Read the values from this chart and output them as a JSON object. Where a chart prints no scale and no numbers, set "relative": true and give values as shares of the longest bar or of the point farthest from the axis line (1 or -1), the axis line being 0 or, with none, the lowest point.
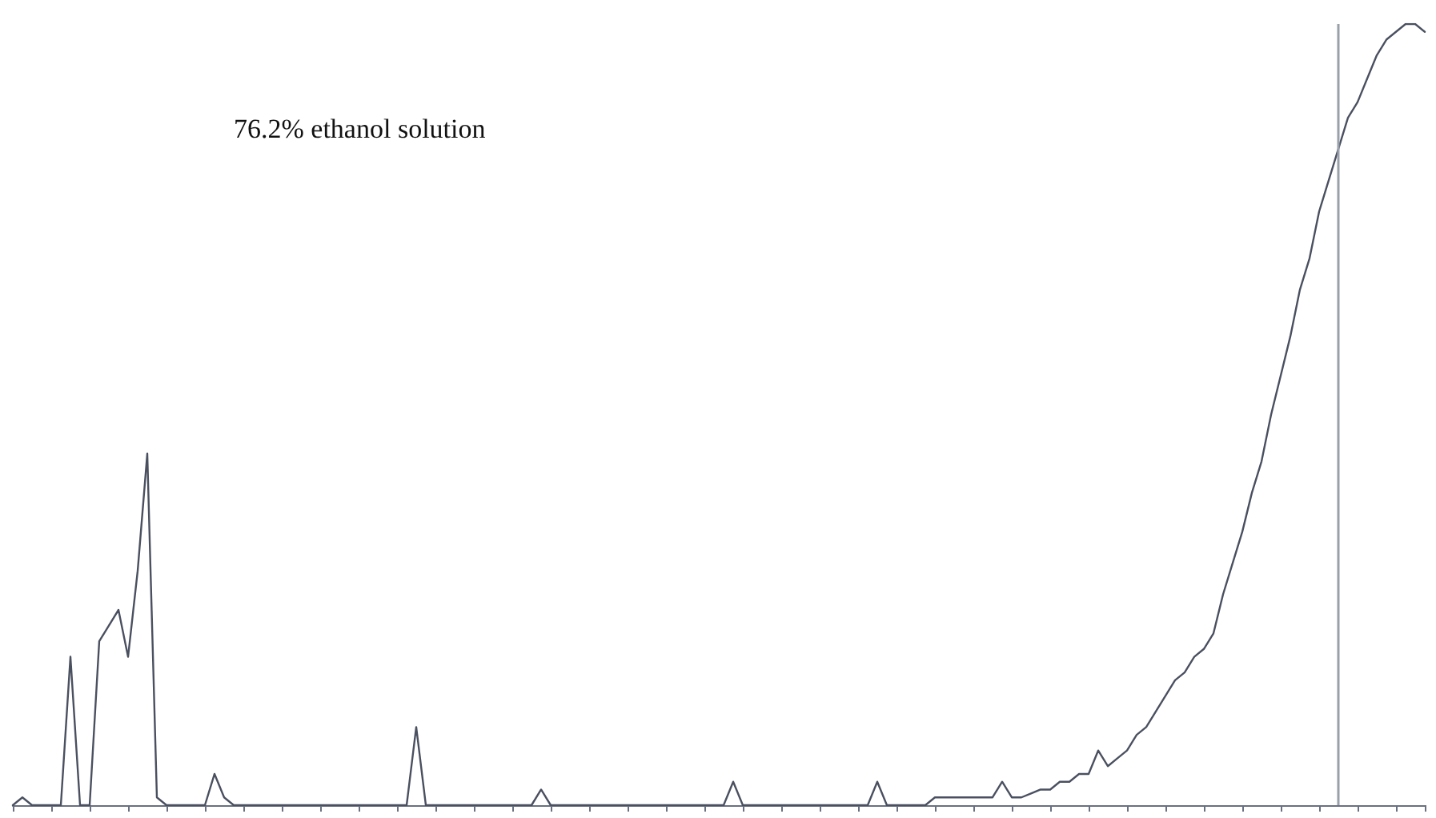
{
  "chart_data": {
    "type": "line",
    "relative": true,
    "annotations": [
      "76.2% ethanol solution"
    ],
    "categories": [
      null,
      null,
      null,
      null,
      null,
      null,
      null,
      null,
      null,
      null,
      null,
      null,
      null,
      null,
      null,
      null,
      null,
      null,
      null,
      null,
      null,
      null,
      null,
      null,
      null,
      null,
      null,
      null,
      null,
      null,
      null,
      null,
      null,
      null,
      null,
      null,
      null,
      null,
      null,
      null,
      null,
      null,
      null,
      null,
      null,
      null,
      null,
      null,
      null,
      null,
      null,
      null,
      null,
      null,
      null,
      null,
      null,
      null,
      null,
      null,
      null,
      null,
      null,
      null,
      null,
      null,
      null,
      null,
      null,
      null,
      null,
      null,
      null,
      null,
      null,
      null,
      null,
      null,
      null,
      null,
      null,
      null,
      null,
      null,
      null,
      null,
      null,
      null,
      null,
      null,
      null,
      null,
      null,
      null,
      null,
      null,
      null,
      null,
      null,
      null,
      null,
      null,
      null,
      null,
      null,
      null,
      null,
      null,
      null,
      null,
      null,
      null,
      null,
      null,
      null,
      null,
      null,
      null,
      null,
      null,
      null,
      null,
      null,
      null,
      null,
      null,
      null,
      null,
      null,
      null,
      null,
      null,
      null,
      null,
      null,
      null,
      null,
      null,
      null,
      null,
      null,
      null,
      null,
      null,
      null,
      null,
      null,
      null
    ],
    "series": [
      {
        "color": "#4a5060",
        "values": [
          0,
          0.01,
          0,
          0,
          0,
          0,
          0.19,
          0,
          0,
          0.21,
          0.23,
          0.25,
          0.19,
          0.3,
          0.45,
          0.01,
          0,
          0,
          0,
          0,
          0,
          0.04,
          0.01,
          0,
          0,
          0,
          0,
          0,
          0,
          0,
          0,
          0,
          0,
          0,
          0,
          0,
          0,
          0,
          0,
          0,
          0,
          0,
          0.1,
          0,
          0,
          0,
          0,
          0,
          0,
          0,
          0,
          0,
          0,
          0,
          0,
          0.02,
          0,
          0,
          0,
          0,
          0,
          0,
          0,
          0,
          0,
          0,
          0,
          0,
          0,
          0,
          0,
          0,
          0,
          0,
          0,
          0.03,
          0,
          0,
          0,
          0,
          0,
          0,
          0,
          0,
          0,
          0,
          0,
          0,
          0,
          0,
          0.03,
          0,
          0,
          0,
          0,
          0,
          0.01,
          0.01,
          0.01,
          0.01,
          0.01,
          0.01,
          0.01,
          0.03,
          0.01,
          0.01,
          0.015,
          0.02,
          0.02,
          0.03,
          0.03,
          0.04,
          0.04,
          0.07,
          0.05,
          0.06,
          0.07,
          0.09,
          0.1,
          0.12,
          0.14,
          0.16,
          0.17,
          0.19,
          0.2,
          0.22,
          0.27,
          0.31,
          0.35,
          0.4,
          0.44,
          0.5,
          0.55,
          0.6,
          0.66,
          0.7,
          0.76,
          0.8,
          0.84,
          0.88,
          0.9,
          0.93,
          0.96,
          0.98,
          0.99,
          1,
          1,
          0.99
        ]
      }
    ],
    "marker": "none",
    "line_style": "solid",
    "grid": false
  }
}
